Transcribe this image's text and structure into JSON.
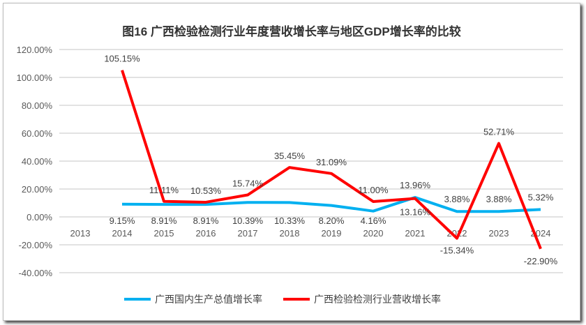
{
  "chart_data": {
    "type": "line",
    "title": "图16  广西检验检测行业年度营收增长率与地区GDP增长率的比较",
    "categories": [
      "2013",
      "2014",
      "2015",
      "2016",
      "2017",
      "2018",
      "2019",
      "2020",
      "2021",
      "2022",
      "2023",
      "2024"
    ],
    "ylim": [
      -40,
      120
    ],
    "yticks": [
      "-40.00%",
      "-20.00%",
      "0.00%",
      "20.00%",
      "40.00%",
      "60.00%",
      "80.00%",
      "100.00%",
      "120.00%"
    ],
    "grid": true,
    "legend_position": "bottom",
    "series": [
      {
        "name": "广西国内生产总值增长率",
        "color": "#00B0F0",
        "values": [
          null,
          9.15,
          8.91,
          8.91,
          10.39,
          10.33,
          8.2,
          4.16,
          13.96,
          3.88,
          3.88,
          5.32
        ],
        "labels": [
          "",
          "9.15%",
          "8.91%",
          "8.91%",
          "10.39%",
          "10.33%",
          "8.20%",
          "4.16%",
          "13.96%",
          "3.88%",
          "3.88%",
          "5.32%"
        ]
      },
      {
        "name": "广西检验检测行业营收增长率",
        "color": "#FF0000",
        "values": [
          null,
          105.15,
          11.11,
          10.53,
          15.74,
          35.45,
          31.09,
          11.0,
          13.16,
          -15.34,
          52.71,
          -22.9
        ],
        "labels": [
          "",
          "105.15%",
          "11.11%",
          "10.53%",
          "15.74%",
          "35.45%",
          "31.09%",
          "11.00%",
          "13.16%",
          "-15.34%",
          "52.71%",
          "-22.90%"
        ]
      }
    ]
  }
}
